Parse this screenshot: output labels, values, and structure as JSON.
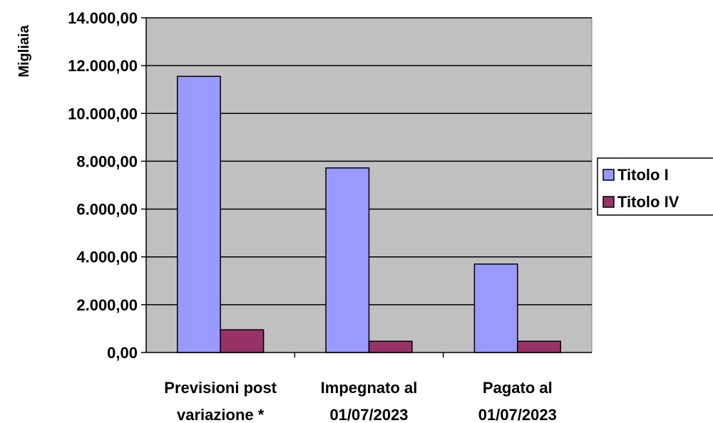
{
  "chart_data": {
    "type": "bar",
    "ylabel": "Migliaia",
    "categories": [
      [
        "Previsioni post",
        "variazione *"
      ],
      [
        "Impegnato al",
        "01/07/2023"
      ],
      [
        "Pagato al",
        "01/07/2023"
      ]
    ],
    "series": [
      {
        "name": "Titolo I",
        "color": "#9999ff",
        "values": [
          11550,
          7720,
          3700
        ]
      },
      {
        "name": "Titolo IV",
        "color": "#993366",
        "values": [
          950,
          470,
          470
        ]
      }
    ],
    "ylim": [
      0,
      14000
    ],
    "yticks": [
      "0,00",
      "2.000,00",
      "4.000,00",
      "6.000,00",
      "8.000,00",
      "10.000,00",
      "12.000,00",
      "14.000,00"
    ],
    "plot_background": "#c0c0c0",
    "grid": true,
    "legend": "right"
  }
}
